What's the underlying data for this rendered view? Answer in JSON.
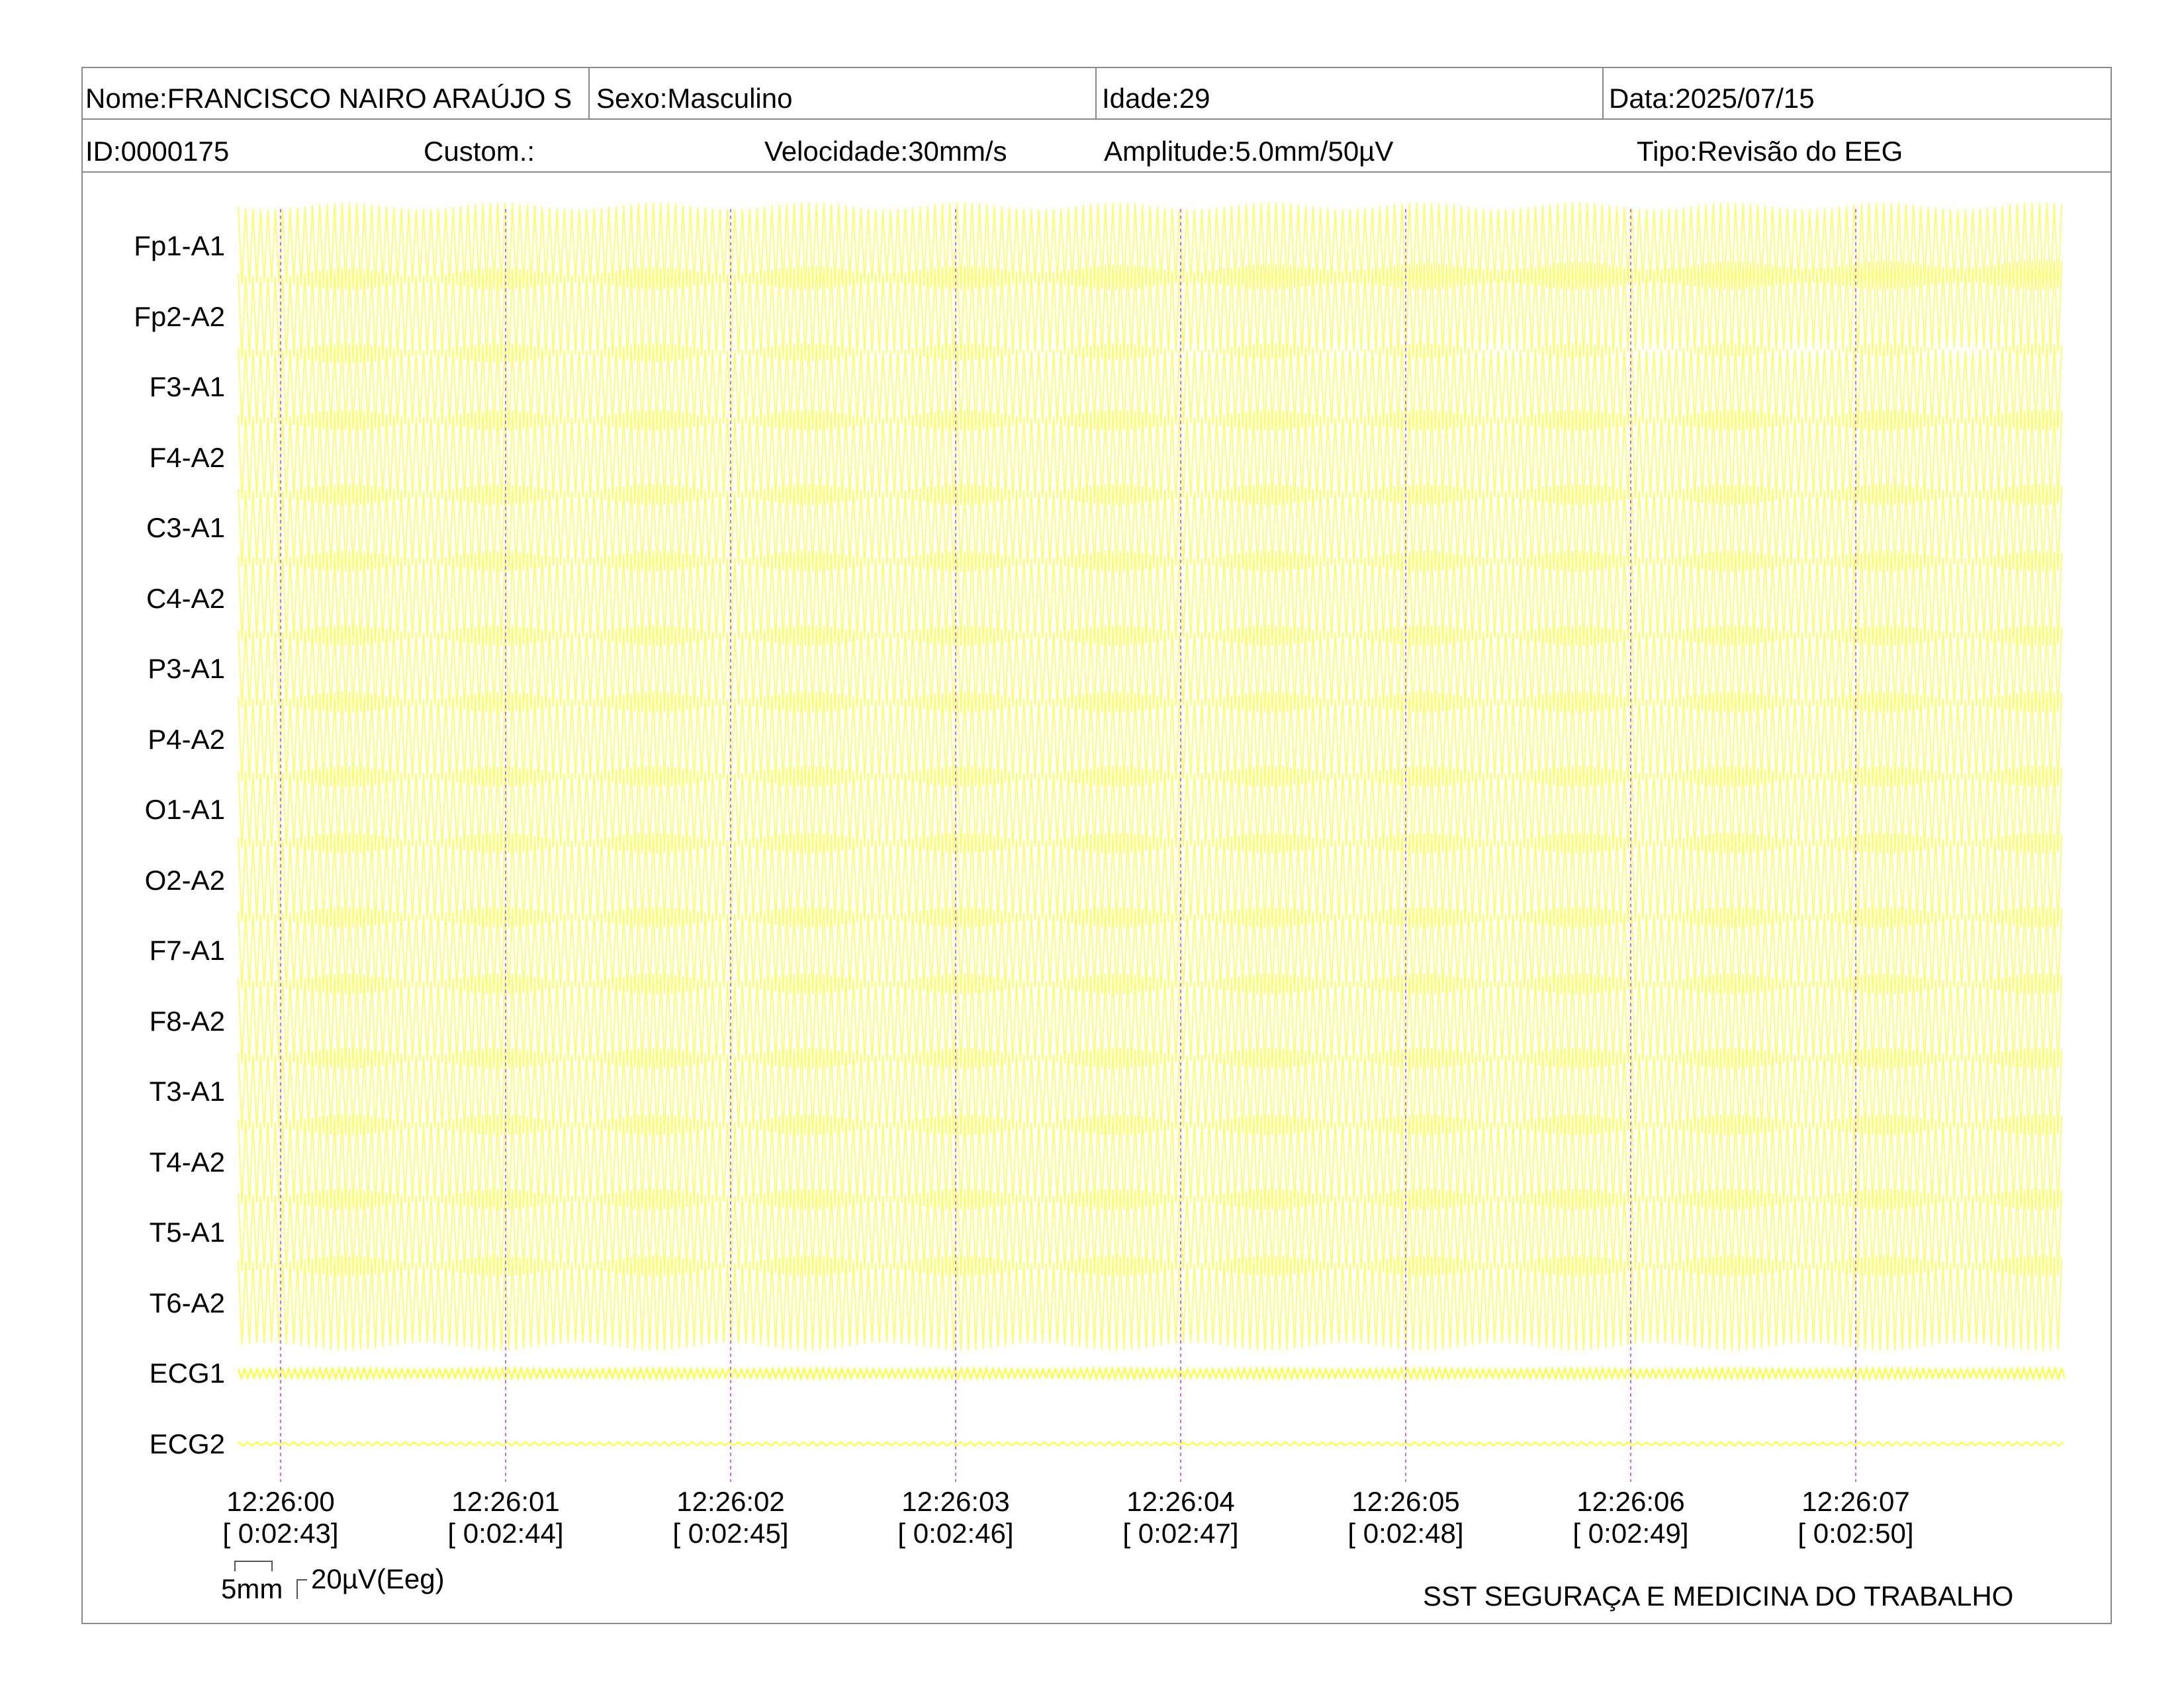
{
  "header": {
    "nome": "Nome:FRANCISCO NAIRO ARAÚJO S",
    "sexo": "Sexo:Masculino",
    "idade": "Idade:29",
    "data": "Data:2025/07/15",
    "id": "ID:0000175",
    "custom": "Custom.:",
    "velocidade": "Velocidade:30mm/s",
    "amplitude": "Amplitude:5.0mm/50µV",
    "tipo": "Tipo:Revisão do EEG"
  },
  "channels": [
    "Fp1-A1",
    "Fp2-A2",
    "F3-A1",
    "F4-A2",
    "C3-A1",
    "C4-A2",
    "P3-A1",
    "P4-A2",
    "O1-A1",
    "O2-A2",
    "F7-A1",
    "F8-A2",
    "T3-A1",
    "T4-A2",
    "T5-A1",
    "T6-A2",
    "ECG1",
    "ECG2"
  ],
  "timestamps": [
    {
      "time": "12:26:00",
      "elapsed": "[ 0:02:43]"
    },
    {
      "time": "12:26:01",
      "elapsed": "[ 0:02:44]"
    },
    {
      "time": "12:26:02",
      "elapsed": "[ 0:02:45]"
    },
    {
      "time": "12:26:03",
      "elapsed": "[ 0:02:46]"
    },
    {
      "time": "12:26:04",
      "elapsed": "[ 0:02:47]"
    },
    {
      "time": "12:26:05",
      "elapsed": "[ 0:02:48]"
    },
    {
      "time": "12:26:06",
      "elapsed": "[ 0:02:49]"
    },
    {
      "time": "12:26:07",
      "elapsed": "[ 0:02:50]"
    }
  ],
  "scale": {
    "time": "5mm",
    "voltage": "20µV(Eeg)"
  },
  "footer": "SST SEGURAÇA E MEDICINA DO TRABALHO",
  "colors": {
    "trace": "#ffff33",
    "marker": "#d070e0",
    "border": "#8a8a8a"
  }
}
